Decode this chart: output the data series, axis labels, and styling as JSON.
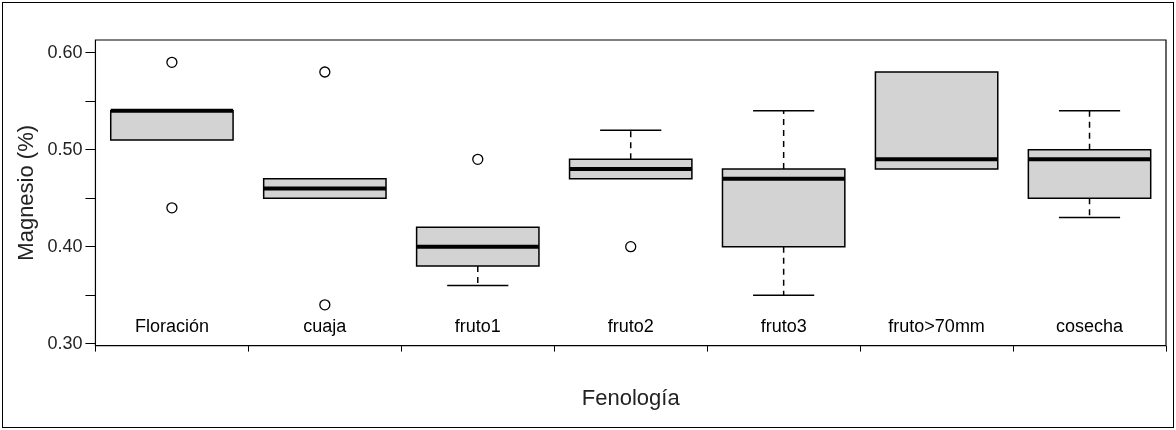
{
  "chart_data": {
    "type": "box",
    "xlabel": "Fenología",
    "ylabel": "Magnesio (%)",
    "categories": [
      "Floración",
      "cuaja",
      "fruto1",
      "fruto2",
      "fruto3",
      "fruto>70mm",
      "cosecha"
    ],
    "color": "#d3d3d3",
    "boxes": [
      {
        "low": 0.51,
        "q1": 0.51,
        "median": 0.54,
        "q3": 0.54,
        "high": 0.54,
        "outliers": [
          0.59,
          0.44
        ]
      },
      {
        "low": 0.45,
        "q1": 0.45,
        "median": 0.46,
        "q3": 0.47,
        "high": 0.47,
        "outliers": [
          0.58,
          0.34
        ]
      },
      {
        "low": 0.36,
        "q1": 0.38,
        "median": 0.4,
        "q3": 0.42,
        "high": 0.42,
        "outliers": [
          0.49
        ]
      },
      {
        "low": 0.47,
        "q1": 0.47,
        "median": 0.48,
        "q3": 0.49,
        "high": 0.52,
        "outliers": [
          0.4
        ]
      },
      {
        "low": 0.35,
        "q1": 0.4,
        "median": 0.47,
        "q3": 0.48,
        "high": 0.54
      },
      {
        "low": 0.48,
        "q1": 0.48,
        "median": 0.49,
        "q3": 0.58,
        "high": 0.58
      },
      {
        "low": 0.43,
        "q1": 0.45,
        "median": 0.49,
        "q3": 0.5,
        "high": 0.54
      }
    ],
    "ylim": [
      0.298,
      0.613
    ],
    "yticks": [
      {
        "value": 0.3,
        "label": "0.30"
      },
      {
        "value": 0.35,
        "label": null
      },
      {
        "value": 0.4,
        "label": "0.40"
      },
      {
        "value": 0.45,
        "label": null
      },
      {
        "value": 0.5,
        "label": "0.50"
      },
      {
        "value": 0.55,
        "label": null
      },
      {
        "value": 0.6,
        "label": "0.60"
      }
    ],
    "grid": false,
    "legend": false
  }
}
